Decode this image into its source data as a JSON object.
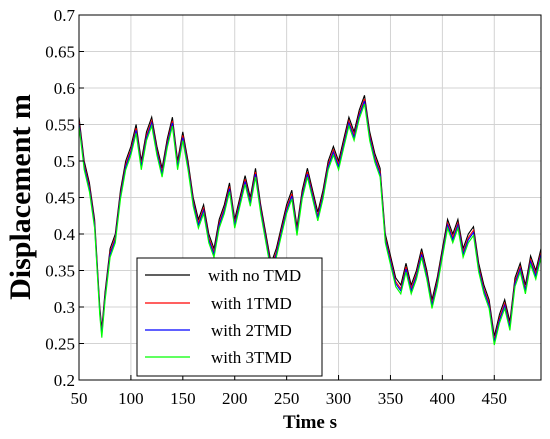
{
  "chart_data": {
    "type": "line",
    "title": "",
    "xlabel": "Time s",
    "ylabel": "Displacement m",
    "xlim": [
      50,
      495
    ],
    "ylim": [
      0.2,
      0.7
    ],
    "xticks": [
      50,
      100,
      150,
      200,
      250,
      300,
      350,
      400,
      450
    ],
    "yticks": [
      0.2,
      0.25,
      0.3,
      0.35,
      0.4,
      0.45,
      0.5,
      0.55,
      0.6,
      0.65,
      0.7
    ],
    "xtick_labels": [
      "50",
      "100",
      "150",
      "200",
      "250",
      "300",
      "350",
      "400",
      "450"
    ],
    "ytick_labels": [
      "0.2",
      "0.25",
      "0.3",
      "0.35",
      "0.4",
      "0.45",
      "0.5",
      "0.55",
      "0.6",
      "0.65",
      "0.7"
    ],
    "grid": true,
    "legend_position": "lower-left",
    "x": [
      50,
      55,
      60,
      65,
      70,
      72,
      75,
      80,
      85,
      90,
      95,
      100,
      105,
      110,
      115,
      120,
      125,
      130,
      135,
      140,
      145,
      150,
      155,
      160,
      165,
      170,
      175,
      180,
      185,
      190,
      195,
      200,
      205,
      210,
      215,
      220,
      225,
      230,
      235,
      240,
      245,
      250,
      255,
      260,
      265,
      270,
      275,
      280,
      285,
      290,
      295,
      300,
      305,
      310,
      315,
      320,
      325,
      330,
      335,
      340,
      345,
      350,
      355,
      360,
      365,
      370,
      375,
      380,
      385,
      390,
      395,
      400,
      405,
      410,
      415,
      420,
      425,
      430,
      435,
      440,
      445,
      450,
      455,
      460,
      465,
      470,
      475,
      480,
      485,
      490,
      495
    ],
    "series": [
      {
        "name": "with no TMD",
        "color": "#000000",
        "values": [
          0.56,
          0.5,
          0.47,
          0.42,
          0.3,
          0.27,
          0.32,
          0.38,
          0.4,
          0.46,
          0.5,
          0.52,
          0.55,
          0.5,
          0.54,
          0.56,
          0.52,
          0.49,
          0.53,
          0.56,
          0.5,
          0.54,
          0.5,
          0.45,
          0.42,
          0.44,
          0.4,
          0.38,
          0.42,
          0.44,
          0.47,
          0.42,
          0.45,
          0.48,
          0.45,
          0.49,
          0.44,
          0.4,
          0.36,
          0.38,
          0.41,
          0.44,
          0.46,
          0.41,
          0.46,
          0.49,
          0.46,
          0.43,
          0.46,
          0.5,
          0.52,
          0.5,
          0.53,
          0.56,
          0.54,
          0.57,
          0.59,
          0.54,
          0.51,
          0.49,
          0.4,
          0.37,
          0.34,
          0.33,
          0.36,
          0.33,
          0.35,
          0.38,
          0.35,
          0.31,
          0.34,
          0.38,
          0.42,
          0.4,
          0.42,
          0.38,
          0.4,
          0.41,
          0.36,
          0.33,
          0.31,
          0.26,
          0.29,
          0.31,
          0.28,
          0.34,
          0.36,
          0.33,
          0.37,
          0.35,
          0.38
        ]
      },
      {
        "name": "with 1TMD",
        "color": "#ff0000",
        "values": [
          0.555,
          0.495,
          0.465,
          0.415,
          0.295,
          0.265,
          0.315,
          0.375,
          0.395,
          0.455,
          0.495,
          0.515,
          0.545,
          0.495,
          0.535,
          0.555,
          0.515,
          0.485,
          0.525,
          0.555,
          0.495,
          0.535,
          0.495,
          0.445,
          0.415,
          0.435,
          0.395,
          0.375,
          0.415,
          0.435,
          0.465,
          0.415,
          0.445,
          0.475,
          0.445,
          0.485,
          0.435,
          0.395,
          0.355,
          0.375,
          0.405,
          0.435,
          0.455,
          0.405,
          0.455,
          0.485,
          0.455,
          0.425,
          0.455,
          0.495,
          0.515,
          0.495,
          0.525,
          0.555,
          0.535,
          0.565,
          0.585,
          0.535,
          0.505,
          0.485,
          0.395,
          0.365,
          0.335,
          0.325,
          0.355,
          0.325,
          0.345,
          0.375,
          0.345,
          0.305,
          0.335,
          0.375,
          0.415,
          0.395,
          0.415,
          0.375,
          0.395,
          0.405,
          0.355,
          0.325,
          0.305,
          0.255,
          0.285,
          0.305,
          0.275,
          0.335,
          0.355,
          0.325,
          0.365,
          0.345,
          0.375
        ]
      },
      {
        "name": "with 2TMD",
        "color": "#0000ff",
        "values": [
          0.552,
          0.492,
          0.462,
          0.412,
          0.292,
          0.262,
          0.312,
          0.372,
          0.392,
          0.452,
          0.492,
          0.512,
          0.542,
          0.492,
          0.532,
          0.552,
          0.512,
          0.482,
          0.522,
          0.552,
          0.492,
          0.532,
          0.492,
          0.442,
          0.412,
          0.432,
          0.392,
          0.372,
          0.412,
          0.432,
          0.462,
          0.412,
          0.442,
          0.472,
          0.442,
          0.482,
          0.432,
          0.392,
          0.352,
          0.372,
          0.402,
          0.432,
          0.452,
          0.402,
          0.452,
          0.482,
          0.452,
          0.422,
          0.452,
          0.492,
          0.512,
          0.492,
          0.522,
          0.552,
          0.532,
          0.562,
          0.582,
          0.532,
          0.502,
          0.482,
          0.392,
          0.362,
          0.332,
          0.322,
          0.352,
          0.322,
          0.342,
          0.372,
          0.342,
          0.302,
          0.332,
          0.372,
          0.412,
          0.392,
          0.412,
          0.372,
          0.392,
          0.402,
          0.352,
          0.322,
          0.302,
          0.252,
          0.282,
          0.302,
          0.272,
          0.332,
          0.352,
          0.322,
          0.362,
          0.342,
          0.372
        ]
      },
      {
        "name": "with 3TMD",
        "color": "#00ff00",
        "values": [
          0.548,
          0.488,
          0.458,
          0.408,
          0.288,
          0.258,
          0.308,
          0.368,
          0.388,
          0.448,
          0.488,
          0.508,
          0.538,
          0.488,
          0.528,
          0.548,
          0.508,
          0.478,
          0.518,
          0.548,
          0.488,
          0.528,
          0.488,
          0.438,
          0.408,
          0.428,
          0.388,
          0.368,
          0.408,
          0.428,
          0.458,
          0.408,
          0.438,
          0.468,
          0.438,
          0.478,
          0.428,
          0.388,
          0.348,
          0.368,
          0.398,
          0.428,
          0.448,
          0.398,
          0.448,
          0.478,
          0.448,
          0.418,
          0.448,
          0.488,
          0.508,
          0.488,
          0.518,
          0.548,
          0.528,
          0.558,
          0.578,
          0.528,
          0.498,
          0.478,
          0.388,
          0.358,
          0.328,
          0.318,
          0.348,
          0.318,
          0.338,
          0.368,
          0.338,
          0.298,
          0.328,
          0.368,
          0.408,
          0.388,
          0.408,
          0.368,
          0.388,
          0.398,
          0.348,
          0.318,
          0.298,
          0.248,
          0.278,
          0.298,
          0.268,
          0.328,
          0.348,
          0.318,
          0.358,
          0.338,
          0.368
        ]
      }
    ]
  }
}
